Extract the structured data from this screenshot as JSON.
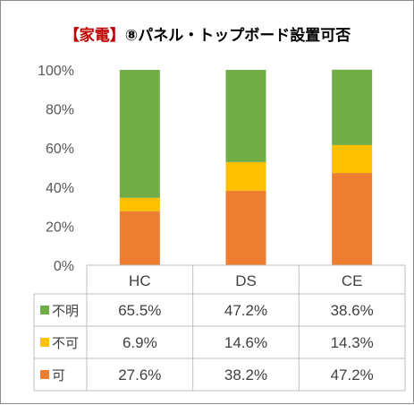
{
  "chart_data": {
    "type": "bar",
    "stacked": true,
    "percent": true,
    "title_prefix": "【家電】",
    "title_main": "⑧パネル・トップボード設置可否",
    "categories": [
      "HC",
      "DS",
      "CE"
    ],
    "ylim": [
      0,
      100
    ],
    "yticks": [
      "0%",
      "20%",
      "40%",
      "60%",
      "80%",
      "100%"
    ],
    "grid": false,
    "legend": "data-table-left",
    "series": [
      {
        "name": "可",
        "values": [
          27.6,
          38.2,
          47.2
        ],
        "labels": [
          "27.6%",
          "38.2%",
          "47.2%"
        ]
      },
      {
        "name": "不可",
        "values": [
          6.9,
          14.6,
          14.3
        ],
        "labels": [
          "6.9%",
          "14.6%",
          "14.3%"
        ]
      },
      {
        "name": "不明",
        "values": [
          65.5,
          47.2,
          38.6
        ],
        "labels": [
          "65.5%",
          "47.2%",
          "38.6%"
        ]
      }
    ],
    "colors": {
      "可": "#ed7d31",
      "不可": "#ffc000",
      "不明": "#70ad47",
      "title_prefix": "#c00000",
      "title_main": "#000000"
    }
  }
}
